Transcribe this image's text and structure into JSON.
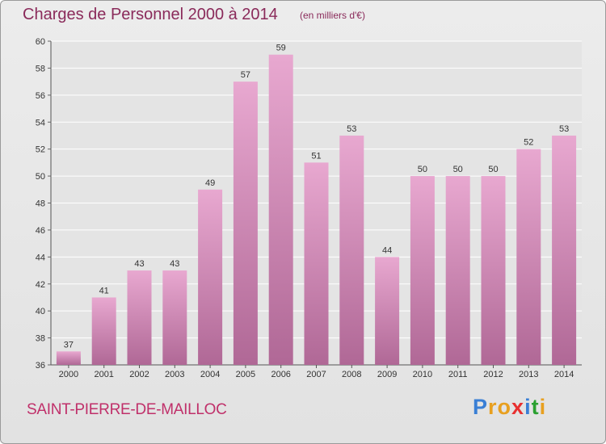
{
  "title": "Charges de Personnel 2000 à 2014",
  "subtitle": "(en milliers d'€)",
  "commune": "SAINT-PIERRE-DE-MAILLOC",
  "logo": {
    "letters": [
      "P",
      "r",
      "o",
      "x",
      "i",
      "t",
      "i"
    ],
    "colors": [
      "#3a7fd5",
      "#e8a020",
      "#e8a020",
      "#e83030",
      "#3a7fd5",
      "#2aa030",
      "#e8a020"
    ]
  },
  "colors": {
    "bar_top": "#e8a8d0",
    "bar_bottom": "#b06896",
    "title": "#8a2a5a",
    "commune": "#c0306a"
  },
  "chart_data": {
    "type": "bar",
    "categories": [
      "2000",
      "2001",
      "2002",
      "2003",
      "2004",
      "2005",
      "2006",
      "2007",
      "2008",
      "2009",
      "2010",
      "2011",
      "2012",
      "2013",
      "2014"
    ],
    "values": [
      37,
      41,
      43,
      43,
      49,
      57,
      59,
      51,
      53,
      44,
      50,
      50,
      50,
      52,
      53
    ],
    "title": "Charges de Personnel 2000 à 2014",
    "ylim": [
      36,
      60
    ],
    "yticks": [
      36,
      38,
      40,
      42,
      44,
      46,
      48,
      50,
      52,
      54,
      56,
      58,
      60
    ],
    "grid": true
  }
}
